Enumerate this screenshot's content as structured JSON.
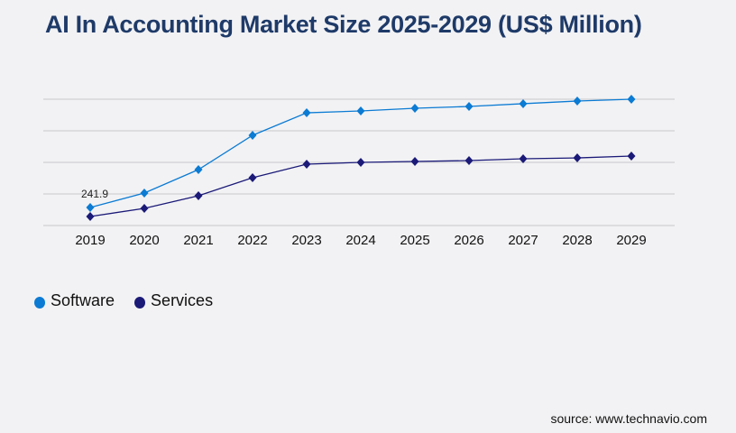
{
  "title": "AI In Accounting Market Size 2025-2029 (US$ Million)",
  "source": "source: www.technavio.com",
  "chart_data": {
    "type": "line",
    "title": "AI In Accounting Market Size 2025-2029 (US$ Million)",
    "xlabel": "",
    "ylabel": "",
    "x": [
      "2019",
      "2020",
      "2021",
      "2022",
      "2023",
      "2024",
      "2025",
      "2026",
      "2027",
      "2028",
      "2029"
    ],
    "ylim": [
      0,
      1694
    ],
    "grid": true,
    "legend": "bottom-left",
    "series": [
      {
        "name": "Software",
        "color": "#0b7bd3",
        "values": [
          241.9,
          436,
          750,
          1210,
          1512,
          1537,
          1573,
          1597,
          1634,
          1670,
          1694
        ]
      },
      {
        "name": "Services",
        "color": "#1b1a78",
        "values": [
          121,
          230,
          399,
          641,
          823,
          847,
          859,
          871,
          895,
          907,
          932
        ]
      }
    ],
    "annotations": [
      {
        "series": "Software",
        "x": "2019",
        "text": "241.9"
      }
    ]
  }
}
